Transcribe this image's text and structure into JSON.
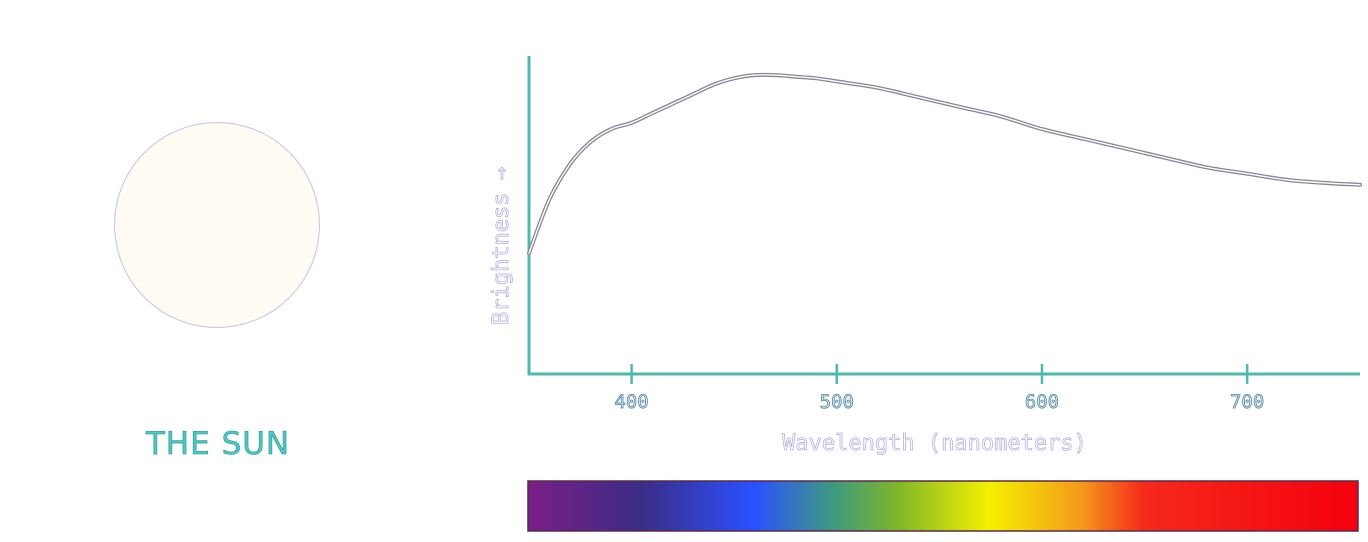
{
  "sun_label": "THE SUN",
  "colors": {
    "axis": "#4fb8ad",
    "curve": "#8a8396",
    "sun_disk": "#fdfbf2",
    "sun_label": "#4cc9c0"
  },
  "chart_data": {
    "type": "line",
    "title": "",
    "xlabel": "Wavelength (nanometers)",
    "ylabel": "Brightness",
    "ylabel_arrow": "→",
    "xlim": [
      350,
      755
    ],
    "ylim": [
      0,
      1
    ],
    "xticks": [
      400,
      500,
      600,
      700
    ],
    "grid": false,
    "legend": "none",
    "series": [
      {
        "x": [
          350,
          360,
          370,
          380,
          390,
          400,
          410,
          420,
          430,
          440,
          450,
          460,
          470,
          480,
          490,
          500,
          520,
          540,
          560,
          580,
          600,
          620,
          640,
          660,
          680,
          700,
          720,
          740,
          755
        ],
        "y": [
          0.38,
          0.55,
          0.66,
          0.73,
          0.77,
          0.79,
          0.82,
          0.85,
          0.88,
          0.91,
          0.93,
          0.94,
          0.94,
          0.935,
          0.93,
          0.92,
          0.9,
          0.87,
          0.84,
          0.81,
          0.77,
          0.74,
          0.71,
          0.68,
          0.65,
          0.63,
          0.61,
          0.6,
          0.595
        ]
      }
    ],
    "spectrum_bar": {
      "range": [
        350,
        755
      ],
      "stops": [
        {
          "wl": 350,
          "color": "#7a1e86"
        },
        {
          "wl": 405,
          "color": "#3b2d85"
        },
        {
          "wl": 460,
          "color": "#2a50ff"
        },
        {
          "wl": 500,
          "color": "#3e9b7d"
        },
        {
          "wl": 530,
          "color": "#7fb52a"
        },
        {
          "wl": 575,
          "color": "#f5f000"
        },
        {
          "wl": 620,
          "color": "#f49a1a"
        },
        {
          "wl": 650,
          "color": "#f52a1a"
        },
        {
          "wl": 755,
          "color": "#f5000e"
        }
      ]
    }
  }
}
